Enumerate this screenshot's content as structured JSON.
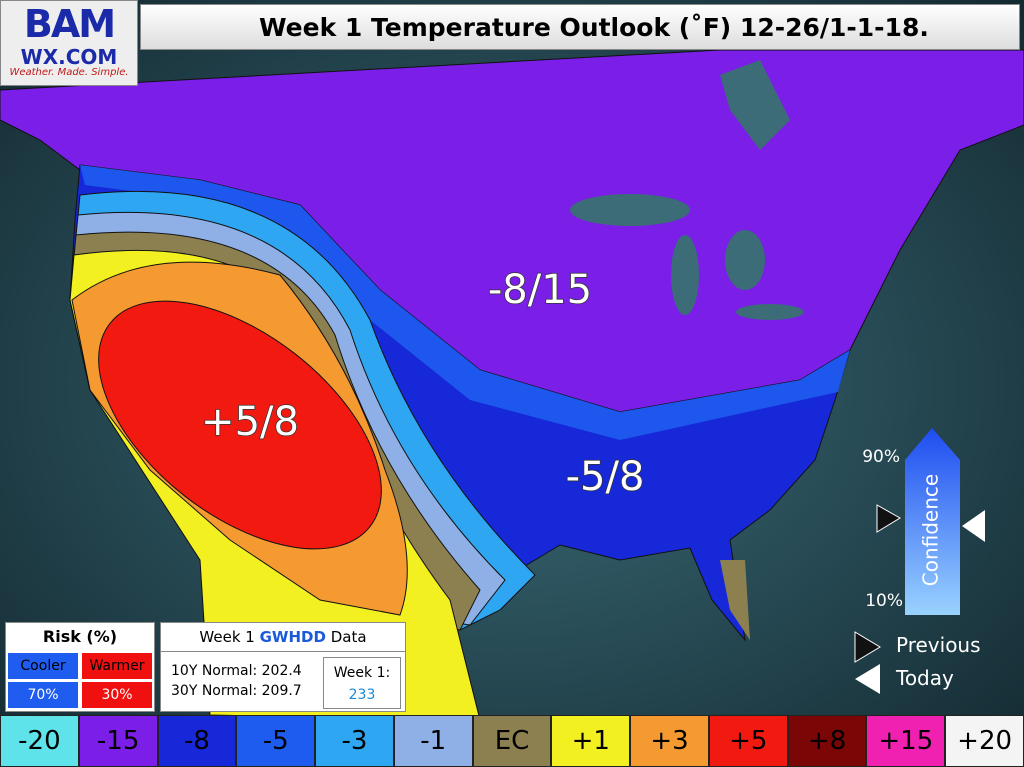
{
  "logo": {
    "name": "BAM",
    "site": "WX.COM",
    "tagline": "Weather. Made. Simple."
  },
  "header": {
    "title": "Week 1 Temperature Outlook (˚F) 12-26/1-1-18."
  },
  "map_labels": [
    "-8/15",
    "+5/8",
    "-5/8"
  ],
  "confidence": {
    "high": "90%",
    "low": "10%",
    "label": "Confidence",
    "previous": "Previous",
    "today": "Today"
  },
  "risk": {
    "title": "Risk (%)",
    "cooler": {
      "label": "Cooler",
      "value": "70%",
      "color": "#1f5cf0"
    },
    "warmer": {
      "label": "Warmer",
      "value": "30%",
      "color": "#f01010"
    }
  },
  "gwhdd": {
    "title_parts": [
      "Week 1",
      "GWHDD",
      "Data"
    ],
    "normal_10y": "10Y Normal: 202.4",
    "normal_30y": "30Y Normal: 209.7",
    "week_label": "Week 1:",
    "week_value": "233"
  },
  "legend": [
    {
      "label": "-20",
      "color": "#5fe3ea"
    },
    {
      "label": "-15",
      "color": "#7a1ee8"
    },
    {
      "label": "-8",
      "color": "#1628d8"
    },
    {
      "label": "-5",
      "color": "#1e5cf0"
    },
    {
      "label": "-3",
      "color": "#2ea6f2"
    },
    {
      "label": "-1",
      "color": "#8fb0e6"
    },
    {
      "label": "EC",
      "color": "#8c8050"
    },
    {
      "label": "+1",
      "color": "#f2f020"
    },
    {
      "label": "+3",
      "color": "#f49a30"
    },
    {
      "label": "+5",
      "color": "#f21a10"
    },
    {
      "label": "+8",
      "color": "#7a0606"
    },
    {
      "label": "+15",
      "color": "#f020b0"
    },
    {
      "label": "+20",
      "color": "#f4f4f4"
    }
  ]
}
